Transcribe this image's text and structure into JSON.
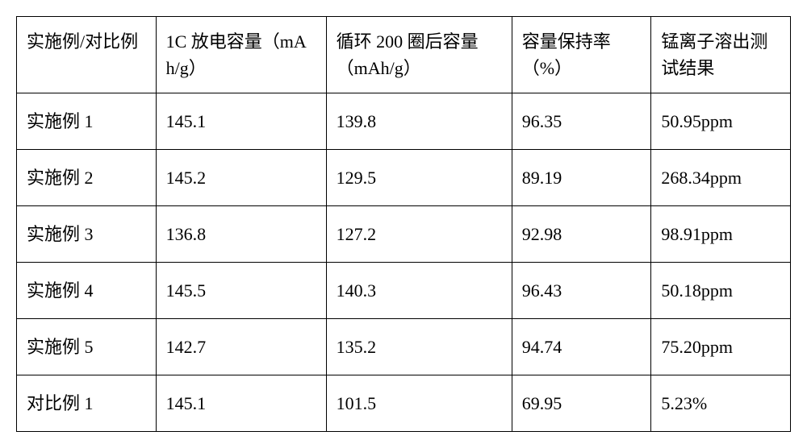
{
  "table": {
    "columns": [
      "实施例/对比例",
      "1C 放电容量（mAh/g）",
      "循环 200 圈后容量（mAh/g）",
      "容量保持率（%）",
      "锰离子溶出测试结果"
    ],
    "rows": [
      [
        "实施例 1",
        "145.1",
        "139.8",
        "96.35",
        "50.95ppm"
      ],
      [
        "实施例 2",
        "145.2",
        "129.5",
        "89.19",
        "268.34ppm"
      ],
      [
        "实施例 3",
        "136.8",
        "127.2",
        "92.98",
        "98.91ppm"
      ],
      [
        "实施例 4",
        "145.5",
        "140.3",
        "96.43",
        "50.18ppm"
      ],
      [
        "实施例 5",
        "142.7",
        "135.2",
        "94.74",
        "75.20ppm"
      ],
      [
        "对比例 1",
        "145.1",
        "101.5",
        "69.95",
        "5.23%"
      ]
    ]
  }
}
